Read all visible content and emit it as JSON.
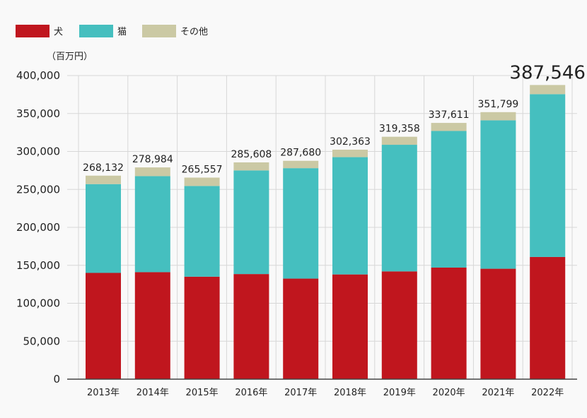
{
  "chart_data": {
    "type": "stacked-bar",
    "unit_label": "（百万円）",
    "categories": [
      "2013年",
      "2014年",
      "2015年",
      "2016年",
      "2017年",
      "2018年",
      "2019年",
      "2020年",
      "2021年",
      "2022年"
    ],
    "series": [
      {
        "name": "犬",
        "color": "#c0161e",
        "values": [
          140000,
          141000,
          135000,
          138500,
          132500,
          138000,
          142000,
          147000,
          145500,
          161000
        ]
      },
      {
        "name": "猫",
        "color": "#45bfbf",
        "values": [
          117000,
          126500,
          119500,
          136500,
          145500,
          154500,
          166800,
          180000,
          195500,
          214500
        ]
      },
      {
        "name": "その他",
        "color": "#cbc9a4",
        "values": [
          11132,
          11484,
          11057,
          10608,
          9680,
          9863,
          10558,
          10611,
          10799,
          12046
        ]
      }
    ],
    "totals": [
      "268,132",
      "278,984",
      "265,557",
      "285,608",
      "287,680",
      "302,363",
      "319,358",
      "337,611",
      "351,799",
      "387,546"
    ],
    "yticks": [
      0,
      50000,
      100000,
      150000,
      200000,
      250000,
      300000,
      350000,
      400000
    ],
    "ytick_labels": [
      "0",
      "50,000",
      "100,000",
      "150,000",
      "200,000",
      "250,000",
      "300,000",
      "350,000",
      "400,000"
    ],
    "ylim": [
      0,
      400000
    ],
    "grid": true,
    "legend_position": "top-left"
  }
}
